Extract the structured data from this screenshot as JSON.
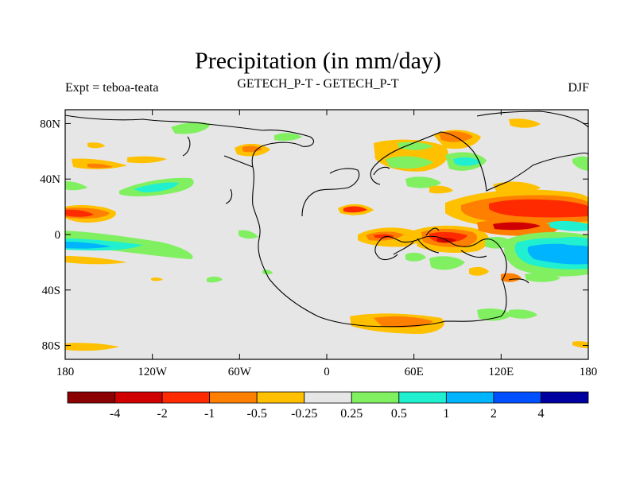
{
  "title": "Precipitation (in mm/day)",
  "subtitle_left": "Expt = teboa-teata",
  "subtitle_center": "GETECH_P-T - GETECH_P-T",
  "subtitle_right": "DJF",
  "chart_data": {
    "type": "heatmap",
    "x_ticks": [
      "180",
      "120W",
      "60W",
      "0",
      "60E",
      "120E",
      "180"
    ],
    "y_ticks": [
      "80N",
      "40N",
      "0",
      "40S",
      "80S"
    ],
    "xlim": [
      -180,
      180
    ],
    "ylim": [
      -90,
      90
    ],
    "background_color": "#e6e6e6",
    "colorbar": {
      "colors": [
        "#8b0000",
        "#d10000",
        "#ff2a00",
        "#ff7f00",
        "#ffc000",
        "#e6e6e6",
        "#80f060",
        "#20f0d0",
        "#00b4ff",
        "#0050ff",
        "#0000a0"
      ],
      "labels": [
        "-4",
        "-2",
        "-1",
        "-0.5",
        "-0.25",
        "0.25",
        "0.5",
        "1",
        "2",
        "4"
      ]
    }
  }
}
